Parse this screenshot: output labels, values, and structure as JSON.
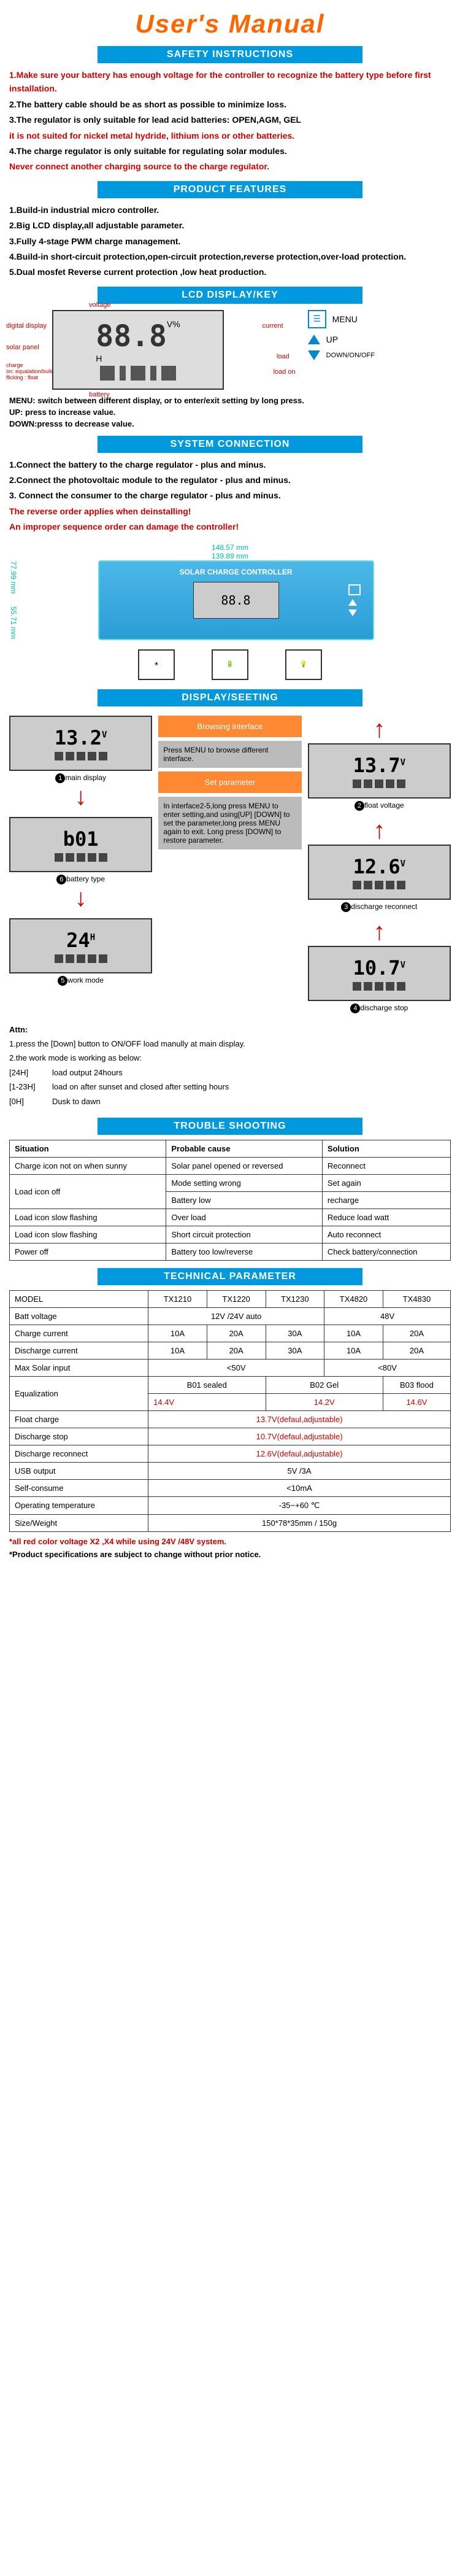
{
  "title": "User's Manual",
  "sections": {
    "safety": "SAFETY INSTRUCTIONS",
    "features": "PRODUCT FEATURES",
    "lcd": "LCD DISPLAY/KEY",
    "connection": "SYSTEM CONNECTION",
    "display_setting": "DISPLAY/SEETING",
    "trouble": "TROUBLE SHOOTING",
    "tech": "TECHNICAL PARAMETER"
  },
  "safety_items": {
    "intro": "1.Make sure your battery has enough voltage for the controller to recognize the battery type before first installation.",
    "i2": "2.The battery cable should be as short as possible to minimize loss.",
    "i3": "3.The regulator is only suitable for lead acid batteries: OPEN,AGM, GEL",
    "i3b": "it is not suited for nickel metal hydride, lithium ions or other batteries.",
    "i4": "4.The charge regulator is only suitable for regulating solar modules.",
    "i4b": "Never connect another charging source to the charge regulator."
  },
  "features_items": {
    "f1": "1.Build-in industrial micro controller.",
    "f2": "2.Big LCD display,all adjustable parameter.",
    "f3": "3.Fully 4-stage PWM charge management.",
    "f4": "4.Build-in short-circuit protection,open-circuit protection,reverse protection,over-load protection.",
    "f5": "5.Dual mosfet Reverse current protection ,low heat production."
  },
  "lcd_labels": {
    "voltage": "voltage",
    "digital": "digital display",
    "solar": "solar panel",
    "charge": "charge\non: equalation/bulk\nflicking : float",
    "battery": "battery",
    "load": "load",
    "load_on": "load on",
    "current": "current",
    "main_val": "88.8",
    "suffix": "V%\nH"
  },
  "keys": {
    "menu": "MENU",
    "up": "UP",
    "down": "DOWN/ON/OFF"
  },
  "menu_desc": {
    "menu": "MENU: switch between different display, or to enter/exit setting by long press.",
    "up": "UP:    press to increase value.",
    "down": "DOWN:presss to decrease value."
  },
  "connection_items": {
    "c1": "1.Connect the battery to the charge regulator - plus and minus.",
    "c2": "2.Connect the photovoltaic module to the regulator - plus and minus.",
    "c3": "3. Connect the consumer to the charge regulator - plus and minus.",
    "warn1": "The reverse order applies when deinstalling!",
    "warn2": "An improper sequence order can damage the controller!"
  },
  "dimensions": {
    "w1": "148.57 mm",
    "w2": "139.89 mm",
    "h1": "77.99 mm",
    "h2": "55.71 mm",
    "ctrl_label": "SOLAR CHARGE CONTROLLER"
  },
  "displays": {
    "d1": {
      "val": "13.2",
      "suffix": "V",
      "label": "main display",
      "num": "1"
    },
    "d2": {
      "val": "13.7",
      "suffix": "V",
      "label": "float voltage",
      "num": "2"
    },
    "d3": {
      "val": "b01",
      "suffix": "",
      "label": "battery type",
      "num": "6"
    },
    "d4": {
      "val": "12.6",
      "suffix": "V",
      "label": "discharge reconnect",
      "num": "3"
    },
    "d5": {
      "val": "24",
      "suffix": "H",
      "label": "work mode",
      "num": "5"
    },
    "d6": {
      "val": "10.7",
      "suffix": "V",
      "label": "discharge stop",
      "num": "4"
    }
  },
  "center_boxes": {
    "b1": "Browsing interface",
    "b1_desc": "Press MENU to browse different interface.",
    "b2": "Set parameter",
    "b2_desc": "In interface2-5,long press MENU to enter setting,and using[UP] [DOWN] to set the parameter,long press MENU again to exit. Long press [DOWN] to restore parameter."
  },
  "attn": {
    "title": "Attn:",
    "a1": "1.press the [Down] button to ON/OFF load manully at main display.",
    "a2": "2.the work mode is working as below:",
    "m1_label": "[24H]",
    "m1_desc": "load output 24hours",
    "m2_label": "[1-23H]",
    "m2_desc": "load on after sunset and closed after setting hours",
    "m3_label": "[0H]",
    "m3_desc": "Dusk to dawn"
  },
  "trouble_table": {
    "headers": [
      "Situation",
      "Probable cause",
      "Solution"
    ],
    "rows": [
      [
        "Charge icon not on when sunny",
        "Solar panel opened or reversed",
        "Reconnect"
      ],
      [
        "Load icon off",
        "Mode setting wrong",
        "Set again"
      ],
      [
        "",
        "Battery low",
        "recharge"
      ],
      [
        "Load icon slow flashing",
        "Over load",
        "Reduce load watt"
      ],
      [
        "Load icon slow flashing",
        "Short circuit protection",
        "Auto reconnect"
      ],
      [
        "Power off",
        "Battery too low/reverse",
        "Check battery/connection"
      ]
    ]
  },
  "tech_table": {
    "models": [
      "MODEL",
      "TX1210",
      "TX1220",
      "TX1230",
      "TX4820",
      "TX4830"
    ],
    "rows": [
      {
        "label": "Batt voltage",
        "cells": [
          "12V /24V auto",
          "48V"
        ],
        "spans": [
          3,
          2
        ]
      },
      {
        "label": "Charge current",
        "cells": [
          "10A",
          "20A",
          "30A",
          "10A",
          "20A"
        ]
      },
      {
        "label": "Discharge current",
        "cells": [
          "10A",
          "20A",
          "30A",
          "10A",
          "20A"
        ]
      },
      {
        "label": "Max Solar input",
        "cells": [
          "<50V",
          "<80V"
        ],
        "spans": [
          3,
          2
        ]
      },
      {
        "label": "Equalization",
        "cells": [
          "B01 sealed",
          "B02 Gel",
          "B03 flood"
        ],
        "spans": [
          2,
          2,
          1
        ],
        "sub": [
          "14.4V",
          "14.2V",
          "14.6V"
        ],
        "red_sub": true
      },
      {
        "label": "Float charge",
        "cells": [
          "13.7V(defaul,adjustable)"
        ],
        "spans": [
          5
        ],
        "red": true
      },
      {
        "label": "Discharge stop",
        "cells": [
          "10.7V(defaul,adjustable)"
        ],
        "spans": [
          5
        ],
        "red": true
      },
      {
        "label": "Discharge reconnect",
        "cells": [
          "12.6V(defaul,adjustable)"
        ],
        "spans": [
          5
        ],
        "red": true
      },
      {
        "label": "USB output",
        "cells": [
          "5V /3A"
        ],
        "spans": [
          5
        ]
      },
      {
        "label": "Self-consume",
        "cells": [
          "<10mA"
        ],
        "spans": [
          5
        ]
      },
      {
        "label": "Operating temperature",
        "cells": [
          "-35~+60 ℃"
        ],
        "spans": [
          5
        ]
      },
      {
        "label": "Size/Weight",
        "cells": [
          "150*78*35mm / 150g"
        ],
        "spans": [
          5
        ]
      }
    ]
  },
  "footnotes": {
    "f1": "*all red color voltage X2 ,X4 while using 24V /48V system.",
    "f2": "*Product specifications are subject to change without prior notice."
  },
  "colors": {
    "orange": "#ff6600",
    "blue": "#0099dd",
    "red": "#cc0000",
    "teal": "#00bbaa"
  }
}
